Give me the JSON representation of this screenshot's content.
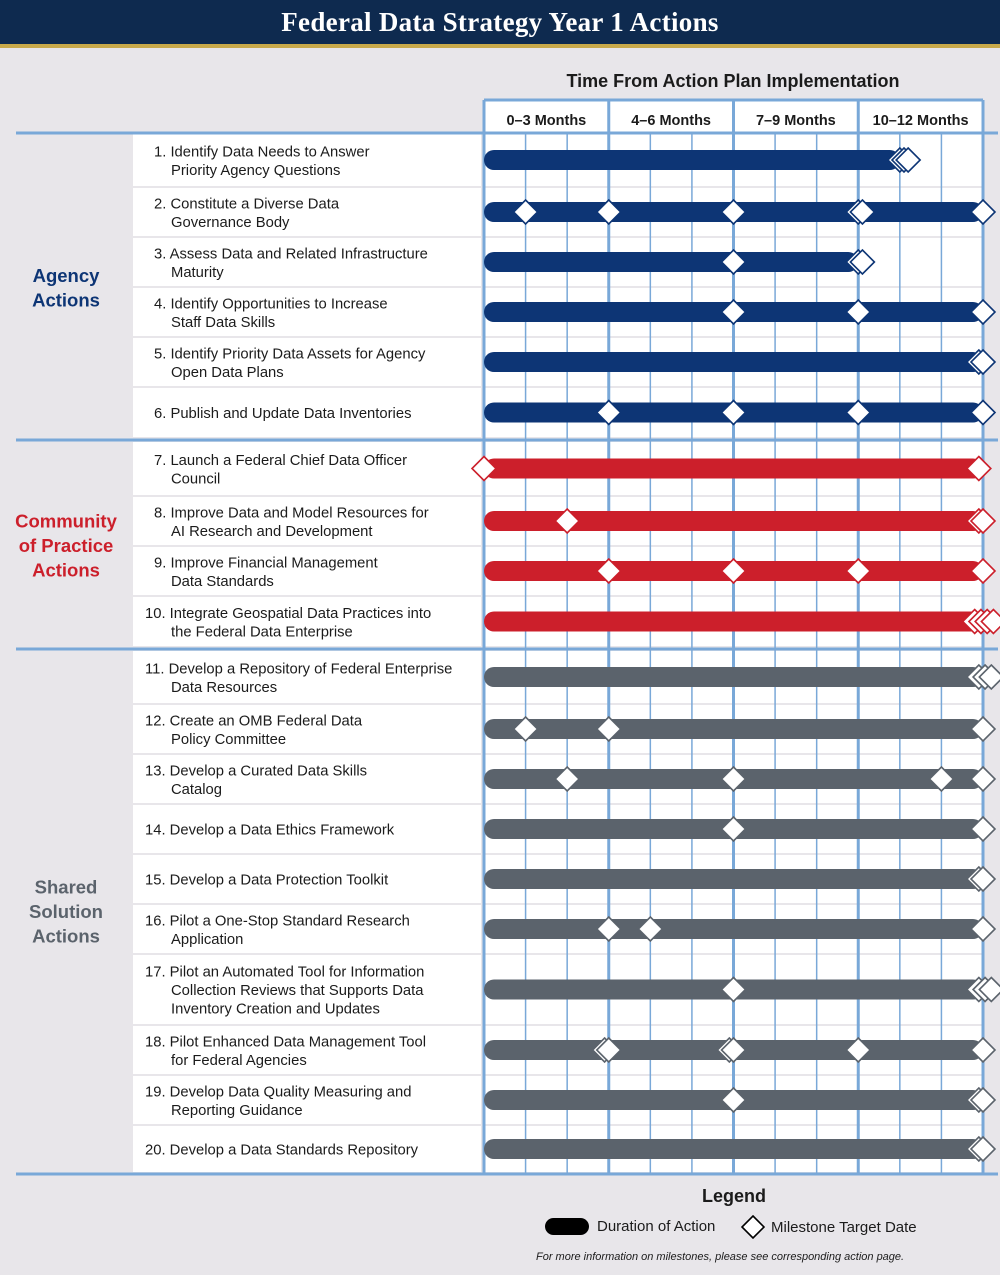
{
  "title": "Federal Data Strategy Year 1 Actions",
  "colors": {
    "header_bg": "#0e2a4f",
    "header_rule": "#c8a94a",
    "agency": "#0d3575",
    "community": "#cc1f2b",
    "shared": "#5b636c",
    "grid": "#79a8d8",
    "background": "#e8e6ea"
  },
  "chart_data": {
    "type": "gantt",
    "title": "Time From Action Plan Implementation",
    "x_unit": "months",
    "xlim": [
      0,
      12
    ],
    "periods": [
      {
        "label": "0–3 Months",
        "start": 0,
        "end": 3
      },
      {
        "label": "4–6 Months",
        "start": 3,
        "end": 6
      },
      {
        "label": "7–9 Months",
        "start": 6,
        "end": 9
      },
      {
        "label": "10–12 Months",
        "start": 9,
        "end": 12
      }
    ],
    "groups": [
      {
        "name": "Agency Actions",
        "color": "#0d3575",
        "tasks": [
          {
            "label": "1. Identify Data Needs to Answer\nPriority Agency Questions",
            "start": 0,
            "end": 10,
            "milestones": [
              10,
              10.1,
              10.2
            ]
          },
          {
            "label": "2. Constitute a Diverse Data\nGovernance Body",
            "start": 0,
            "end": 12,
            "milestones": [
              1,
              3,
              6,
              9,
              9.1,
              12
            ]
          },
          {
            "label": "3. Assess Data and Related Infrastructure\nMaturity",
            "start": 0,
            "end": 9,
            "milestones": [
              6,
              9,
              9.1
            ]
          },
          {
            "label": "4. Identify Opportunities to Increase\nStaff Data Skills",
            "start": 0,
            "end": 12,
            "milestones": [
              6,
              9,
              12
            ]
          },
          {
            "label": "5. Identify Priority Data Assets for Agency\nOpen Data Plans",
            "start": 0,
            "end": 12,
            "milestones": [
              11.9,
              12
            ]
          },
          {
            "label": "6. Publish and Update Data Inventories",
            "start": 0,
            "end": 12,
            "milestones": [
              3,
              6,
              9,
              12
            ]
          }
        ]
      },
      {
        "name": "Community of Practice Actions",
        "color": "#cc1f2b",
        "tasks": [
          {
            "label": "7. Launch a Federal Chief Data Officer\nCouncil",
            "start": 0,
            "end": 12,
            "milestones": [
              0,
              11.9
            ]
          },
          {
            "label": "8. Improve Data and Model Resources for\nAI Research and Development",
            "start": 0,
            "end": 12,
            "milestones": [
              2,
              11.9,
              12
            ]
          },
          {
            "label": "9. Improve Financial Management\nData Standards",
            "start": 0,
            "end": 12,
            "milestones": [
              3,
              6,
              9,
              12
            ]
          },
          {
            "label": "10. Integrate Geospatial Data Practices into\nthe Federal Data Enterprise",
            "start": 0,
            "end": 12,
            "milestones": [
              11.8,
              11.95,
              12.1,
              12.25
            ]
          }
        ]
      },
      {
        "name": "Shared Solution Actions",
        "color": "#5b636c",
        "tasks": [
          {
            "label": "11. Develop a Repository of Federal Enterprise\nData Resources",
            "start": 0,
            "end": 12,
            "milestones": [
              11.9,
              12.05,
              12.2
            ]
          },
          {
            "label": "12. Create an OMB Federal Data\nPolicy Committee",
            "start": 0,
            "end": 12,
            "milestones": [
              1,
              3,
              12
            ]
          },
          {
            "label": "13. Develop a Curated Data Skills\nCatalog",
            "start": 0,
            "end": 12,
            "milestones": [
              2,
              6,
              11,
              12
            ]
          },
          {
            "label": "14. Develop a Data Ethics Framework",
            "start": 0,
            "end": 12,
            "milestones": [
              6,
              12
            ]
          },
          {
            "label": "15. Develop a Data Protection Toolkit",
            "start": 0,
            "end": 12,
            "milestones": [
              11.9,
              12
            ]
          },
          {
            "label": "16. Pilot a One-Stop Standard Research\nApplication",
            "start": 0,
            "end": 12,
            "milestones": [
              3,
              4,
              12
            ]
          },
          {
            "label": "17. Pilot an Automated Tool for Information\nCollection Reviews that Supports Data\nInventory Creation and Updates",
            "start": 0,
            "end": 12,
            "milestones": [
              6,
              11.9,
              12.05,
              12.2
            ]
          },
          {
            "label": "18. Pilot Enhanced Data Management Tool\nfor Federal Agencies",
            "start": 0,
            "end": 12,
            "milestones": [
              2.9,
              3.0,
              5.9,
              6.0,
              9,
              12
            ]
          },
          {
            "label": "19. Develop Data Quality Measuring and\nReporting Guidance",
            "start": 0,
            "end": 12,
            "milestones": [
              6,
              11.9,
              12
            ]
          },
          {
            "label": "20. Develop a Data Standards Repository",
            "start": 0,
            "end": 12,
            "milestones": [
              11.9,
              12
            ]
          }
        ]
      }
    ]
  },
  "legend": {
    "title": "Legend",
    "bar_label": "Duration of Action",
    "milestone_label": "Milestone Target Date"
  },
  "footnote": "For more information on milestones, please see corresponding action page."
}
